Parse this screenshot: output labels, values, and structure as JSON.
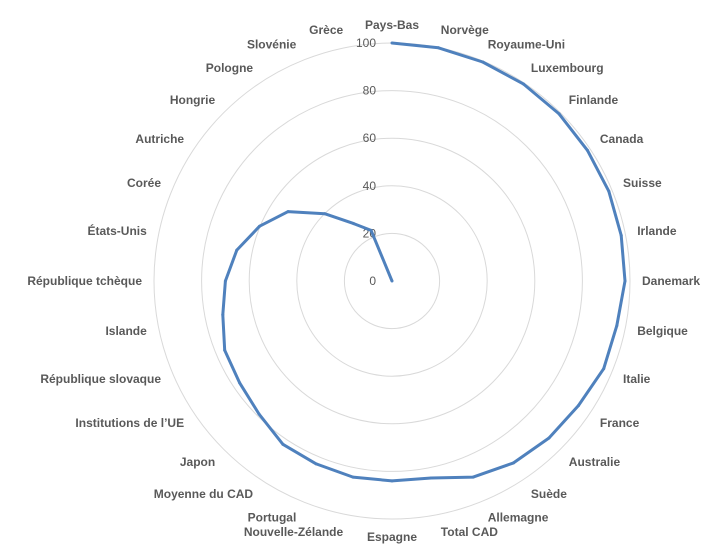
{
  "chart_data": {
    "type": "radar",
    "categories": [
      "Pays-Bas",
      "Norvège",
      "Royaume-Uni",
      "Luxembourg",
      "Finlande",
      "Canada",
      "Suisse",
      "Irlande",
      "Danemark",
      "Belgique",
      "Italie",
      "France",
      "Australie",
      "Suède",
      "Allemagne",
      "Total CAD",
      "Espagne",
      "Nouvelle-Zélande",
      "Portugal",
      "Moyenne du CAD",
      "Japon",
      "Institutions de l’UE",
      "République slovaque",
      "Islande",
      "République tchèque",
      "États-Unis",
      "Corée",
      "Autriche",
      "Hongrie",
      "Pologne",
      "Slovénie",
      "Grèce"
    ],
    "series": [
      {
        "values": [
          100,
          99.9,
          99.6,
          99.5,
          99.3,
          98.8,
          98.6,
          98.2,
          97.9,
          96.3,
          96.3,
          94.2,
          93.3,
          91.9,
          89.2,
          84.4,
          84,
          84,
          83.2,
          82.5,
          79,
          77,
          76.1,
          72.5,
          70,
          66.5,
          60.2,
          52.5,
          40,
          29,
          23,
          0
        ]
      }
    ],
    "rlim": [
      0,
      100
    ],
    "ticks": [
      "0",
      "20",
      "40",
      "60",
      "80",
      "100"
    ],
    "grid": true,
    "line_color": "#4f81bd"
  }
}
